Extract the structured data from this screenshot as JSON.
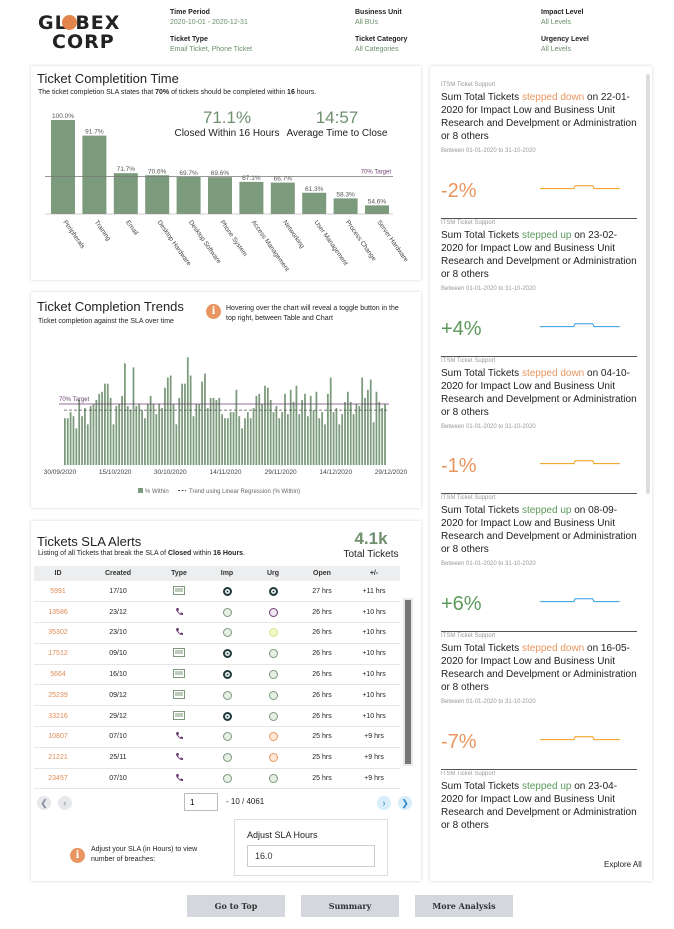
{
  "logo": {
    "line1": "GL  BEX",
    "line2": "CORP"
  },
  "filters": [
    {
      "label": "Time Period",
      "value": "2020-10-01 - 2020-12-31"
    },
    {
      "label": "Business Unit",
      "value": "All BUs"
    },
    {
      "label": "Impact Level",
      "value": "All Levels"
    },
    {
      "label": "Ticket Type",
      "value": "Email Ticket, Phone Ticket"
    },
    {
      "label": "Ticket Category",
      "value": "All Categories"
    },
    {
      "label": "Urgency Level",
      "value": "All Levels"
    }
  ],
  "completion": {
    "title": "Ticket Completition Time",
    "subtitle_pre": "The ticket completion SLA states that ",
    "subtitle_bold1": "70%",
    "subtitle_mid": " of tickets should be completed within ",
    "subtitle_bold2": "16",
    "subtitle_post": " hours.",
    "kpi1_value": "71.1%",
    "kpi1_caption": "Closed Within 16 Hours",
    "kpi2_value": "14:57",
    "kpi2_caption": "Average Time to Close"
  },
  "trends": {
    "title": "Ticket Completion Trends",
    "subtitle": "Ticket completion against the SLA over time",
    "info": "Hovering over the chart will reveal a toggle button in the top right, between Table and Chart"
  },
  "chart_data": [
    {
      "type": "bar",
      "categories": [
        "Peripherals",
        "Training",
        "Email",
        "Desktop Hardware",
        "Desktop Software",
        "Phone System",
        "Access Management",
        "Networking",
        "User Management",
        "Process Change",
        "Server Hardware"
      ],
      "values": [
        100.0,
        91.7,
        71.7,
        70.6,
        69.7,
        69.6,
        67.1,
        66.7,
        61.3,
        58.3,
        54.6
      ],
      "value_labels": [
        "100.0%",
        "91.7%",
        "71.7%",
        "70.6%",
        "69.7%",
        "69.6%",
        "67.1%",
        "66.7%",
        "61.3%",
        "58.3%",
        "54.6%"
      ],
      "reference_line": {
        "label": "70% Target",
        "value": 70
      },
      "ylim": [
        50,
        100
      ],
      "color": "#7c9a7c"
    },
    {
      "type": "bar",
      "x_tick_labels": [
        "30/09/2020",
        "15/10/2020",
        "30/10/2020",
        "14/11/2020",
        "29/11/2020",
        "14/12/2020",
        "29/12/2020"
      ],
      "values": [
        63,
        63,
        66,
        64,
        58,
        72,
        64,
        68,
        60,
        69,
        70,
        72,
        75,
        76,
        80,
        80,
        73,
        60,
        69,
        70,
        74,
        90,
        69,
        67,
        88,
        69,
        70,
        67,
        63,
        70,
        74,
        70,
        65,
        70,
        68,
        78,
        83,
        84,
        70,
        60,
        73,
        80,
        80,
        93,
        84,
        64,
        70,
        70,
        81,
        85,
        68,
        73,
        73,
        72,
        73,
        65,
        63,
        63,
        66,
        66,
        77,
        64,
        58,
        63,
        66,
        63,
        68,
        74,
        75,
        70,
        79,
        78,
        72,
        66,
        69,
        63,
        66,
        75,
        65,
        77,
        71,
        79,
        65,
        72,
        75,
        64,
        74,
        67,
        76,
        63,
        66,
        60,
        75,
        83,
        66,
        68,
        60,
        65,
        71,
        76,
        71,
        65,
        70,
        69,
        83,
        73,
        77,
        82,
        61,
        76,
        71,
        68,
        70
      ],
      "ylim": [
        40,
        100
      ],
      "reference_line": {
        "label": "70% Target",
        "value": 70
      },
      "trend_line": {
        "value": 67
      },
      "legend": [
        "% Within",
        "Trend using Linear Regression (% Within)"
      ],
      "legend_position": "bottom",
      "color": "#7c9a7c"
    }
  ],
  "alerts": {
    "title": "Tickets SLA Alerts",
    "subtitle_pre": "Listing of all Tickets that break the SLA of ",
    "subtitle_bold1": "Closed",
    "subtitle_mid": " within ",
    "subtitle_bold2": "16 Hours",
    "subtitle_post": ".",
    "total_value": "4.1k",
    "total_caption": "Total Tickets",
    "columns": [
      "ID",
      "Created",
      "Type",
      "Imp",
      "Urg",
      "Open",
      "+/-"
    ],
    "rows": [
      {
        "id": "5991",
        "created": "17/10",
        "type": "email",
        "imp": "high",
        "urg": "high",
        "open": "27 hrs",
        "delta": "+11 hrs"
      },
      {
        "id": "13586",
        "created": "23/12",
        "type": "phone",
        "imp": "medium",
        "urg": "purple",
        "open": "26 hrs",
        "delta": "+10 hrs"
      },
      {
        "id": "35302",
        "created": "23/10",
        "type": "phone",
        "imp": "medium",
        "urg": "yellow",
        "open": "26 hrs",
        "delta": "+10 hrs"
      },
      {
        "id": "17512",
        "created": "09/10",
        "type": "email",
        "imp": "high",
        "urg": "medium",
        "open": "26 hrs",
        "delta": "+10 hrs"
      },
      {
        "id": "5664",
        "created": "16/10",
        "type": "email",
        "imp": "high",
        "urg": "medium",
        "open": "26 hrs",
        "delta": "+10 hrs"
      },
      {
        "id": "25239",
        "created": "09/12",
        "type": "email",
        "imp": "medium",
        "urg": "medium",
        "open": "26 hrs",
        "delta": "+10 hrs"
      },
      {
        "id": "33216",
        "created": "29/12",
        "type": "email",
        "imp": "high",
        "urg": "medium",
        "open": "26 hrs",
        "delta": "+10 hrs"
      },
      {
        "id": "10807",
        "created": "07/10",
        "type": "phone",
        "imp": "medium",
        "urg": "orange",
        "open": "25 hrs",
        "delta": "+9 hrs"
      },
      {
        "id": "21221",
        "created": "25/11",
        "type": "phone",
        "imp": "medium",
        "urg": "orange",
        "open": "25 hrs",
        "delta": "+9 hrs"
      },
      {
        "id": "23457",
        "created": "07/10",
        "type": "phone",
        "imp": "medium",
        "urg": "medium",
        "open": "25 hrs",
        "delta": "+9 hrs"
      }
    ],
    "pager": {
      "page": "1",
      "total": "- 10 / 4061"
    },
    "adjust_note": "Adjust your SLA (in Hours) to view number of breaches:",
    "adjust_label": "Adjust SLA Hours",
    "adjust_value": "16.0"
  },
  "feed": {
    "source": "ITSM Ticket Support",
    "period": "Between 01-01-2020 to 31-10-2020",
    "explore": "Explore All",
    "items": [
      {
        "pre": "Sum Total Tickets ",
        "dir": "stepped down",
        "kind": "dn",
        "post": " on 22-01-2020 for Impact Low and Business Unit Research and Develpment or Administration or 8 others",
        "pct": "-2%",
        "color": "#e8955f"
      },
      {
        "pre": "Sum Total Tickets ",
        "dir": "stepped up",
        "kind": "up",
        "post": " on 23-02-2020 for Impact Low and Business Unit Research and Develpment or Administration or 8 others",
        "pct": "+4%",
        "color": "#5b9a5b"
      },
      {
        "pre": "Sum Total Tickets ",
        "dir": "stepped down",
        "kind": "dn",
        "post": " on 04-10-2020 for Impact Low and Business Unit Research and Develpment or Administration or 8 others",
        "pct": "-1%",
        "color": "#e8955f"
      },
      {
        "pre": "Sum Total Tickets ",
        "dir": "stepped up",
        "kind": "up",
        "post": " on 08-09-2020 for Impact Low and Business Unit Research and Develpment or Administration or 8 others",
        "pct": "+6%",
        "color": "#5b9a5b"
      },
      {
        "pre": "Sum Total Tickets ",
        "dir": "stepped down",
        "kind": "dn",
        "post": " on 16-05-2020 for Impact Low and Business Unit Research and Develpment or Administration or 8 others",
        "pct": "-7%",
        "color": "#e8955f"
      },
      {
        "pre": "Sum Total Tickets ",
        "dir": "stepped up",
        "kind": "up",
        "post": " on 23-04-2020 for Impact Low and Business Unit Research and Develpment or Administration or 8 others",
        "pct": "",
        "color": "#5b9a5b"
      }
    ]
  },
  "nav": {
    "top": "Go to Top",
    "summary": "Summary",
    "analysis": "More Analysis"
  },
  "colors": {
    "bar": "#7c9a7c",
    "accent_orange": "#e8955f",
    "accent_green": "#5b9a5b",
    "spark_orange": "#f39c12",
    "spark_blue": "#2e9fe0",
    "target": "#6d3f73"
  }
}
